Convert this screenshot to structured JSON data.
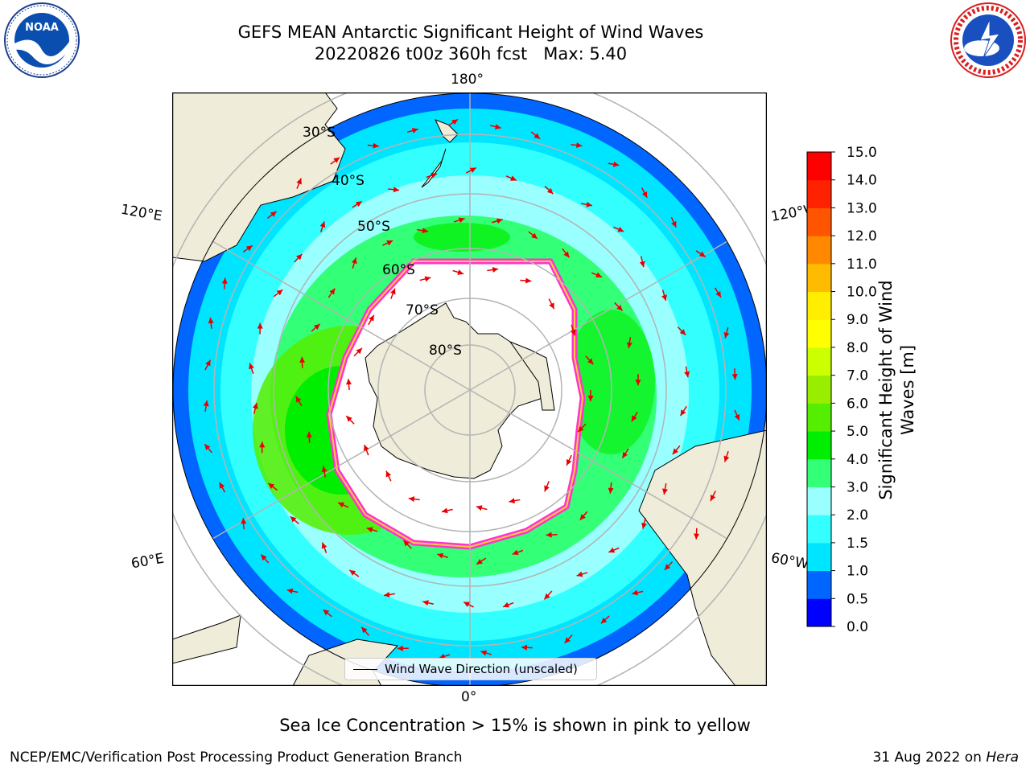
{
  "title": "GEFS MEAN Antarctic Significant Height of Wind Waves",
  "subtitle": "20220826 t00z 360h fcst   Max: 5.40",
  "logos": {
    "left": "NOAA",
    "right": "NATIONAL WEATHER SERVICE"
  },
  "map": {
    "projection": "south-polar-stereographic",
    "longitude_labels": {
      "top": "180°",
      "bottom": "0°",
      "upper_left": "120°E",
      "upper_right": "120°W",
      "lower_left": "60°E",
      "lower_right": "60°W"
    },
    "latitude_labels": [
      "30°S",
      "40°S",
      "50°S",
      "60°S",
      "70°S",
      "80°S"
    ],
    "land_color": "#efecd9",
    "ice_edge_color": "#ff33cc",
    "arrow_color": "#e80000"
  },
  "legend": {
    "label": "Wind Wave Direction (unscaled)"
  },
  "colorbar": {
    "title_line1": "Significant Height of Wind",
    "title_line2": "Waves [m]",
    "ticks": [
      "0.0",
      "0.5",
      "1.0",
      "1.5",
      "2.0",
      "3.0",
      "4.0",
      "5.0",
      "6.0",
      "7.0",
      "8.0",
      "9.0",
      "10.0",
      "11.0",
      "12.0",
      "13.0",
      "14.0",
      "15.0"
    ],
    "colors": [
      "#0000ff",
      "#0066ff",
      "#00e5ff",
      "#33ffff",
      "#99ffff",
      "#33ff77",
      "#00ee00",
      "#55ee00",
      "#99ee00",
      "#ccff00",
      "#ffff00",
      "#ffee00",
      "#ffbb00",
      "#ff8800",
      "#ff5500",
      "#ff2200",
      "#ff0000"
    ]
  },
  "caption": "Sea Ice Concentration > 15% is shown in pink to yellow",
  "footer_left": "NCEP/EMC/Verification Post Processing Product Generation Branch",
  "footer_right_prefix": "31 Aug 2022 on ",
  "footer_right_machine": "Hera"
}
